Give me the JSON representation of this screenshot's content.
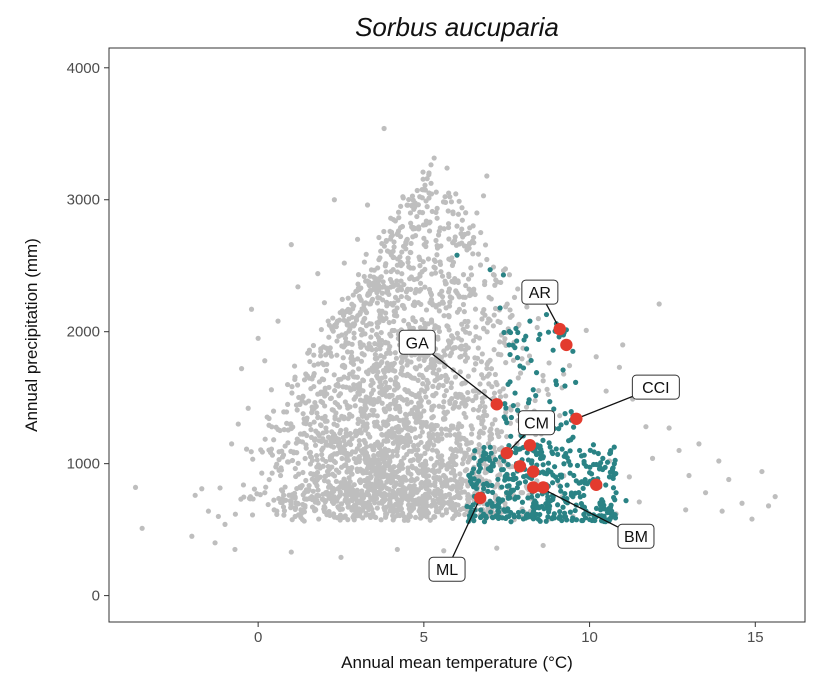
{
  "chart_data": {
    "type": "scatter",
    "title": "Sorbus aucuparia",
    "xlabel": "Annual mean temperature (°C)",
    "ylabel": "Annual precipitation (mm)",
    "xlim": [
      -4.5,
      16.5
    ],
    "ylim": [
      -200,
      4150
    ],
    "x_ticks": [
      0,
      5,
      10,
      15
    ],
    "y_ticks": [
      0,
      1000,
      2000,
      3000,
      4000
    ],
    "grid": false,
    "series": [
      {
        "role": "background",
        "color": "#bebebe",
        "note_points": "dense cloud; approximate distribution",
        "points": [
          [
            -3.7,
            820
          ],
          [
            -3.5,
            510
          ],
          [
            -1.9,
            760
          ],
          [
            -1.7,
            810
          ],
          [
            -1.5,
            640
          ],
          [
            -1.2,
            600
          ],
          [
            -1.0,
            540
          ],
          [
            -0.8,
            1150
          ],
          [
            -0.6,
            1300
          ],
          [
            -0.5,
            1720
          ],
          [
            -0.3,
            1420
          ],
          [
            -0.2,
            2170
          ],
          [
            0.0,
            1950
          ],
          [
            0.2,
            1780
          ],
          [
            0.4,
            1560
          ],
          [
            0.6,
            2080
          ],
          [
            1.0,
            2660
          ],
          [
            1.2,
            2340
          ],
          [
            1.8,
            2440
          ],
          [
            2.0,
            2220
          ],
          [
            2.3,
            3000
          ],
          [
            2.6,
            2520
          ],
          [
            3.0,
            2700
          ],
          [
            3.3,
            2960
          ],
          [
            3.6,
            2390
          ],
          [
            3.8,
            3540
          ],
          [
            4.1,
            2680
          ],
          [
            4.3,
            2950
          ],
          [
            4.5,
            2700
          ],
          [
            4.8,
            3070
          ],
          [
            5.1,
            3160
          ],
          [
            5.4,
            2860
          ],
          [
            5.7,
            3240
          ],
          [
            6.0,
            2800
          ],
          [
            6.3,
            2620
          ],
          [
            6.6,
            2900
          ],
          [
            6.8,
            3030
          ],
          [
            6.9,
            3180
          ],
          [
            7.1,
            2490
          ],
          [
            5.5,
            2510
          ],
          [
            4.0,
            2860
          ],
          [
            3.2,
            2210
          ],
          [
            12.1,
            2210
          ],
          [
            12.4,
            1270
          ],
          [
            12.7,
            1100
          ],
          [
            13.0,
            910
          ],
          [
            13.5,
            780
          ],
          [
            13.9,
            1020
          ],
          [
            14.2,
            880
          ],
          [
            14.6,
            700
          ],
          [
            14.9,
            580
          ],
          [
            15.2,
            940
          ],
          [
            15.4,
            680
          ],
          [
            15.6,
            750
          ],
          [
            11.0,
            1900
          ],
          [
            11.3,
            1490
          ],
          [
            11.7,
            1280
          ],
          [
            10.5,
            1550
          ],
          [
            10.9,
            1730
          ],
          [
            9.9,
            2010
          ],
          [
            10.2,
            1810
          ],
          [
            11.9,
            1040
          ],
          [
            12.9,
            650
          ],
          [
            14.0,
            640
          ],
          [
            13.3,
            1150
          ],
          [
            8.6,
            380
          ],
          [
            7.2,
            360
          ],
          [
            5.6,
            340
          ],
          [
            4.2,
            350
          ],
          [
            2.5,
            290
          ],
          [
            1.0,
            330
          ],
          [
            -0.7,
            350
          ],
          [
            -1.3,
            400
          ],
          [
            -2.0,
            450
          ],
          [
            9.5,
            600
          ],
          [
            10.8,
            620
          ],
          [
            11.5,
            710
          ],
          [
            10.6,
            1020
          ],
          [
            11.2,
            900
          ]
        ],
        "cloud": {
          "x_center": 4.3,
          "x_spread": 3.6,
          "y_base": 650,
          "count": 2600
        }
      },
      {
        "role": "highlight",
        "color": "#2a8385",
        "note_points": "approximate; dense near the red markers",
        "points": [
          [
            6.0,
            2580
          ],
          [
            7.0,
            2470
          ],
          [
            7.4,
            2430
          ],
          [
            7.3,
            2180
          ],
          [
            8.2,
            2080
          ],
          [
            8.7,
            2130
          ],
          [
            9.0,
            2060
          ],
          [
            8.5,
            1980
          ],
          [
            7.8,
            1930
          ],
          [
            8.1,
            1870
          ],
          [
            8.9,
            1860
          ],
          [
            7.9,
            1740
          ],
          [
            8.4,
            1690
          ],
          [
            9.2,
            1710
          ],
          [
            7.6,
            1620
          ],
          [
            8.3,
            1560
          ],
          [
            9.0,
            1600
          ],
          [
            8.8,
            1470
          ],
          [
            7.7,
            1440
          ],
          [
            8.6,
            1320
          ],
          [
            9.3,
            1310
          ],
          [
            9.5,
            1200
          ],
          [
            8.0,
            1210
          ],
          [
            9.7,
            1100
          ],
          [
            7.4,
            1060
          ],
          [
            9.9,
            980
          ],
          [
            10.3,
            960
          ],
          [
            10.6,
            900
          ],
          [
            10.8,
            780
          ],
          [
            11.1,
            720
          ],
          [
            10.4,
            1040
          ],
          [
            9.6,
            870
          ],
          [
            6.5,
            960
          ]
        ],
        "cloud": {
          "x_min": 6.3,
          "x_max": 10.8,
          "y_min": 560,
          "y_max": 1150,
          "count": 400
        }
      },
      {
        "role": "sites",
        "color": "#e33b2e",
        "points": [
          [
            9.1,
            2020
          ],
          [
            9.3,
            1900
          ],
          [
            7.2,
            1450
          ],
          [
            9.6,
            1340
          ],
          [
            8.2,
            1140
          ],
          [
            7.5,
            1080
          ],
          [
            7.9,
            980
          ],
          [
            8.3,
            940
          ],
          [
            8.3,
            820
          ],
          [
            8.6,
            820
          ],
          [
            10.2,
            840
          ],
          [
            6.7,
            740
          ]
        ]
      }
    ],
    "annotations": [
      {
        "label": "AR",
        "x": 9.1,
        "y": 2020,
        "label_x": 8.5,
        "label_y": 2300
      },
      {
        "label": "GA",
        "x": 7.2,
        "y": 1450,
        "label_x": 4.8,
        "label_y": 1920
      },
      {
        "label": "CCI",
        "x": 9.6,
        "y": 1340,
        "label_x": 12.0,
        "label_y": 1580
      },
      {
        "label": "CM",
        "x": 7.5,
        "y": 1080,
        "label_x": 8.4,
        "label_y": 1310
      },
      {
        "label": "BM",
        "x": 8.5,
        "y": 820,
        "label_x": 11.4,
        "label_y": 450
      },
      {
        "label": "ML",
        "x": 6.7,
        "y": 740,
        "label_x": 5.7,
        "label_y": 200
      }
    ]
  }
}
